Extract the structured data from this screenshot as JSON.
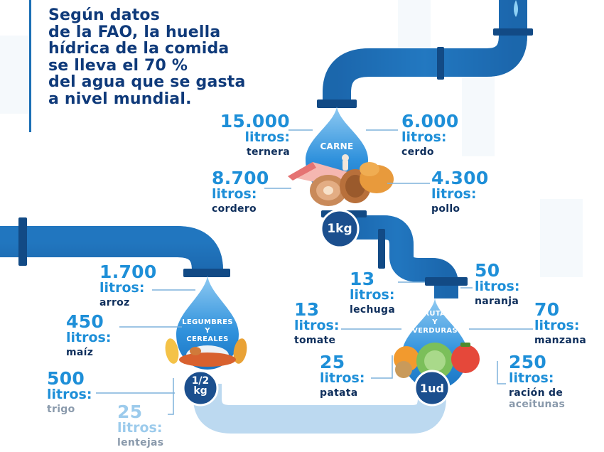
{
  "intro": {
    "lines": [
      "Según datos",
      "de la FAO, la huella",
      "hídrica de la comida",
      "se lleva el 70 %",
      "del agua que se gasta",
      "a nivel mundial."
    ]
  },
  "groups": {
    "carne": {
      "category": "CARNE",
      "unit_label": "1kg",
      "items": [
        {
          "amount": "15.000",
          "unit": "litros:",
          "name": "ternera"
        },
        {
          "amount": "6.000",
          "unit": "litros:",
          "name": "cerdo"
        },
        {
          "amount": "8.700",
          "unit": "litros:",
          "name": "cordero"
        },
        {
          "amount": "4.300",
          "unit": "litros:",
          "name": "pollo"
        }
      ]
    },
    "legumbres": {
      "category_line1": "LEGUMBRES",
      "category_line2": "Y",
      "category_line3": "CEREALES",
      "unit_top": "1/2",
      "unit_bottom": "kg",
      "items": [
        {
          "amount": "1.700",
          "unit": "litros:",
          "name": "arroz"
        },
        {
          "amount": "450",
          "unit": "litros:",
          "name": "maíz"
        },
        {
          "amount": "500",
          "unit": "litros:",
          "name": "trigo"
        },
        {
          "amount": "25",
          "unit": "litros:",
          "name": "lentejas"
        }
      ]
    },
    "frutas": {
      "category_line1": "FRUTAS",
      "category_line2": "Y",
      "category_line3": "VERDURAS",
      "unit_label": "1ud",
      "items": [
        {
          "amount": "13",
          "unit": "litros:",
          "name": "lechuga"
        },
        {
          "amount": "50",
          "unit": "litros:",
          "name": "naranja"
        },
        {
          "amount": "13",
          "unit": "litros:",
          "name": "tomate"
        },
        {
          "amount": "70",
          "unit": "litros:",
          "name": "manzana"
        },
        {
          "amount": "25",
          "unit": "litros:",
          "name": "patata"
        },
        {
          "amount": "250",
          "unit": "litros:",
          "name": "ración de",
          "name2": "aceitunas"
        }
      ]
    }
  },
  "colors": {
    "pipe": "#1d6db4",
    "pipe_dark": "#124a85",
    "drop": "#2b8fdb",
    "amount": "#1e8fd8",
    "name": "#0f2f5c",
    "title": "#0f3a7a"
  }
}
